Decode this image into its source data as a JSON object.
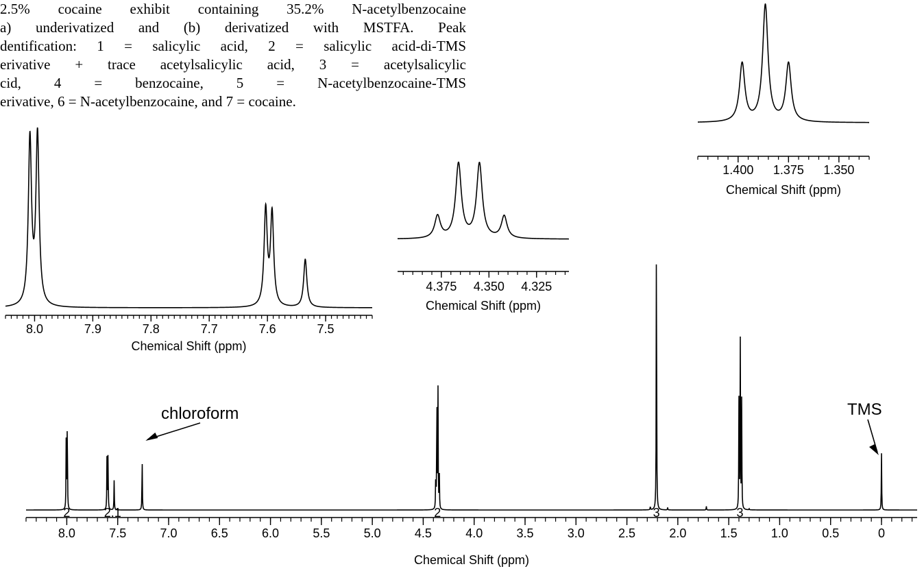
{
  "caption": {
    "lines": [
      "2.5% cocaine exhibit containing 35.2% N-acetylbenzocaine",
      "a) underivatized and (b) derivatized with MSTFA.  Peak",
      "dentification: 1 = salicylic acid, 2 = salicylic acid-di-TMS",
      "erivative + trace acetylsalicylic acid, 3 = acetylsalicylic",
      "cid, 4 = benzocaine, 5 = N-acetylbenzocaine-TMS",
      "erivative, 6 = N-acetylbenzocaine, and 7 = cocaine."
    ]
  },
  "chart_data": [
    {
      "type": "line",
      "name": "main_spectrum",
      "xlabel": "Chemical Shift (ppm)",
      "xlim": [
        8.4,
        -0.35
      ],
      "x_reversed": true,
      "ylim": [
        0,
        1
      ],
      "grid": false,
      "tick_labels": [
        "8.0",
        "7.5",
        "7.0",
        "6.5",
        "6.0",
        "5.5",
        "5.0",
        "4.5",
        "4.0",
        "3.5",
        "3.0",
        "2.5",
        "2.0",
        "1.5",
        "1.0",
        "0.5",
        "0"
      ],
      "peaks": [
        {
          "x": 8.005,
          "y": 0.74
        },
        {
          "x": 7.995,
          "y": 0.76
        },
        {
          "x": 7.605,
          "y": 0.47
        },
        {
          "x": 7.595,
          "y": 0.46
        },
        {
          "x": 7.535,
          "y": 0.24
        },
        {
          "x": 7.26,
          "y": 0.43
        },
        {
          "x": 4.377,
          "y": 0.29
        },
        {
          "x": 4.366,
          "y": 0.97
        },
        {
          "x": 4.355,
          "y": 0.97
        },
        {
          "x": 4.342,
          "y": 0.29
        },
        {
          "x": 2.27,
          "y": 0.03
        },
        {
          "x": 2.21,
          "y": 2.45
        },
        {
          "x": 2.1,
          "y": 0.02
        },
        {
          "x": 1.72,
          "y": 0.03
        },
        {
          "x": 1.4,
          "y": 0.88
        },
        {
          "x": 1.387,
          "y": 1.42
        },
        {
          "x": 1.373,
          "y": 0.88
        },
        {
          "x": 1.3,
          "y": 0.01
        },
        {
          "x": 0.0,
          "y": 0.46
        }
      ],
      "integrals": [
        {
          "x": 8.0,
          "label": "2"
        },
        {
          "x": 7.55,
          "label": "2.1"
        },
        {
          "x": 4.36,
          "label": "2"
        },
        {
          "x": 2.21,
          "label": "3"
        },
        {
          "x": 1.39,
          "label": "3"
        }
      ],
      "annotations": [
        {
          "text": "chloroform",
          "x": 7.26
        },
        {
          "text": "TMS",
          "x": 0.0
        }
      ]
    },
    {
      "type": "line",
      "name": "inset_aromatic",
      "xlabel": "Chemical Shift (ppm)",
      "xlim": [
        8.05,
        7.42
      ],
      "x_reversed": true,
      "tick_labels": [
        "8.0",
        "7.9",
        "7.8",
        "7.7",
        "7.6",
        "7.5"
      ],
      "peaks": [
        {
          "x": 8.008,
          "y": 0.83
        },
        {
          "x": 7.995,
          "y": 0.85
        },
        {
          "x": 7.603,
          "y": 0.48
        },
        {
          "x": 7.592,
          "y": 0.46
        },
        {
          "x": 7.535,
          "y": 0.24
        }
      ]
    },
    {
      "type": "line",
      "name": "inset_quartet",
      "xlabel": "Chemical Shift (ppm)",
      "xlim": [
        4.398,
        4.308
      ],
      "x_reversed": true,
      "tick_labels": [
        "4.375",
        "4.350",
        "4.325"
      ],
      "peaks": [
        {
          "x": 4.377,
          "y": 0.29
        },
        {
          "x": 4.366,
          "y": 0.97
        },
        {
          "x": 4.355,
          "y": 0.97
        },
        {
          "x": 4.342,
          "y": 0.29
        }
      ]
    },
    {
      "type": "line",
      "name": "inset_triplet",
      "xlabel": "Chemical Shift (ppm)",
      "xlim": [
        1.42,
        1.335
      ],
      "x_reversed": true,
      "tick_labels": [
        "1.400",
        "1.375",
        "1.350"
      ],
      "peaks": [
        {
          "x": 1.398,
          "y": 0.5
        },
        {
          "x": 1.3865,
          "y": 1.0
        },
        {
          "x": 1.375,
          "y": 0.5
        }
      ]
    }
  ]
}
